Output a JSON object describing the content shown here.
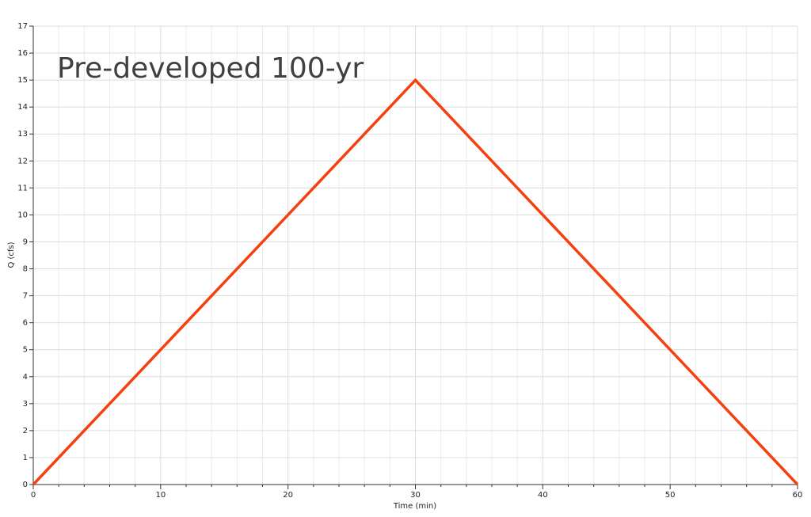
{
  "chart_data": {
    "type": "line",
    "annotation": "Pre-developed 100-yr",
    "x_label": "Time (min)",
    "y_label": "Q (cfs)",
    "x": [
      0,
      30,
      60
    ],
    "series": [
      {
        "name": "Pre-developed 100-yr",
        "color": "#f5400f",
        "values": [
          0,
          15,
          0
        ]
      }
    ],
    "xlim": [
      0,
      60
    ],
    "ylim": [
      0,
      17
    ],
    "xticks": [
      0,
      10,
      20,
      30,
      40,
      50,
      60
    ],
    "xminorticks": [
      2,
      4,
      6,
      8,
      12,
      14,
      16,
      18,
      22,
      24,
      26,
      28,
      32,
      34,
      36,
      38,
      42,
      44,
      46,
      48,
      52,
      54,
      56,
      58
    ],
    "yticks": [
      0,
      1,
      2,
      3,
      4,
      5,
      6,
      7,
      8,
      9,
      10,
      11,
      12,
      13,
      14,
      15,
      16,
      17
    ],
    "grid": true
  }
}
